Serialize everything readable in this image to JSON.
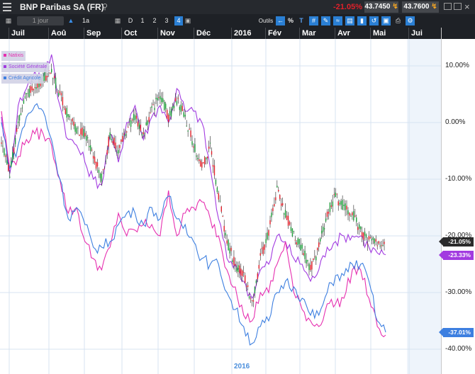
{
  "window": {
    "title": "BNP Paribas SA (FR)",
    "change": "-21.05%",
    "bid": "43.7450",
    "ask": "43.7600"
  },
  "toolbar": {
    "period_label": "1 jour",
    "range_label": "1a",
    "range_buttons": [
      "D",
      "1",
      "2",
      "3",
      "4"
    ],
    "tools_label": "Outils",
    "percent_label": "%",
    "text_label": "T"
  },
  "colors": {
    "natixis": "#e62fb0",
    "societe_generale": "#a23be0",
    "credit_agricole": "#3d7fe0",
    "candle_up": "#1f9e3a",
    "candle_down": "#e0202a",
    "badge_bnp": "#2b2b2b"
  },
  "chart_data": {
    "type": "line",
    "x_axis_months": [
      "Juil",
      "Aoû",
      "Sep",
      "Oct",
      "Nov",
      "Déc",
      "2016",
      "Fév",
      "Mar",
      "Avr",
      "Mai",
      "Jui"
    ],
    "year_marker": "2016",
    "y_ticks": [
      "10.00%",
      "0.00%",
      "-10.00%",
      "-20.00%",
      "-30.00%",
      "-40.00%"
    ],
    "ylim": [
      -44,
      14
    ],
    "grid": true,
    "legend_position": "top-left",
    "legend": [
      "Natixis",
      "Société Générale",
      "Crédit Agricole"
    ],
    "x": [
      0,
      5,
      10,
      15,
      20,
      25,
      30,
      35,
      40,
      45,
      50,
      55,
      60,
      65,
      70,
      75,
      80,
      85,
      90,
      95,
      100,
      105,
      110,
      115,
      120,
      125,
      130,
      135,
      140,
      145,
      150,
      155,
      160,
      165,
      170,
      175,
      180,
      185,
      190,
      195,
      200,
      205,
      210,
      215,
      220,
      225,
      230
    ],
    "series": [
      {
        "name": "BNP Paribas SA",
        "type": "candlestick",
        "values": [
          -3,
          -9,
          0,
          5,
          6,
          8,
          9,
          5,
          1,
          -1,
          -2,
          -6,
          -10,
          -2,
          -5,
          -1,
          1,
          -2,
          2,
          5,
          1,
          4,
          1,
          -4,
          -8,
          -4,
          -13,
          -21,
          -25,
          -27,
          -32,
          -24,
          -19,
          -12,
          -16,
          -20,
          -22,
          -26,
          -22,
          -16,
          -13,
          -15,
          -16,
          -19,
          -21,
          -21,
          -21.05
        ]
      },
      {
        "name": "Société Générale",
        "values": [
          1,
          -9,
          3,
          6,
          9,
          8,
          12,
          3,
          -3,
          -4,
          -7,
          -10,
          -11,
          -2,
          -7,
          0,
          3,
          -3,
          1,
          3,
          0,
          6,
          2,
          2,
          0,
          -8,
          -17,
          -24,
          -25,
          -28,
          -31,
          -26,
          -25,
          -20,
          -21,
          -24,
          -25,
          -28,
          -26,
          -22,
          -21,
          -20,
          -20,
          -20,
          -22,
          -23,
          -23.33
        ]
      },
      {
        "name": "Natixis",
        "values": [
          2,
          -8,
          -6,
          -3,
          -2,
          -2,
          -4,
          -10,
          -16,
          -15,
          -21,
          -24,
          -26,
          -22,
          -16,
          -20,
          -19,
          -18,
          -18,
          -20,
          -12,
          -20,
          -16,
          -15,
          -14,
          -17,
          -20,
          -26,
          -29,
          -34,
          -35,
          -30,
          -30,
          -25,
          -21,
          -30,
          -33,
          -35,
          -36,
          -32,
          -32,
          -31,
          -26,
          -26,
          -31,
          -36,
          -37.5
        ]
      },
      {
        "name": "Crédit Agricole",
        "values": [
          0,
          -8,
          -4,
          1,
          3,
          2,
          -3,
          -10,
          -17,
          -15,
          -18,
          -22,
          -22,
          -21,
          -18,
          -16,
          -16,
          -18,
          -15,
          -17,
          -13,
          -17,
          -18,
          -21,
          -24,
          -25,
          -25,
          -30,
          -33,
          -36,
          -39,
          -36,
          -35,
          -30,
          -28,
          -29,
          -31,
          -34,
          -34,
          -30,
          -27,
          -27,
          -25,
          -25,
          -28,
          -35,
          -37.01
        ]
      }
    ],
    "badges": [
      {
        "label": "-21.05%",
        "value": -21.05,
        "series": "BNP Paribas SA"
      },
      {
        "label": "-23.33%",
        "value": -23.33,
        "series": "Société Générale"
      },
      {
        "label": "-37.01%",
        "value": -37.01,
        "series": "Crédit Agricole"
      }
    ]
  }
}
